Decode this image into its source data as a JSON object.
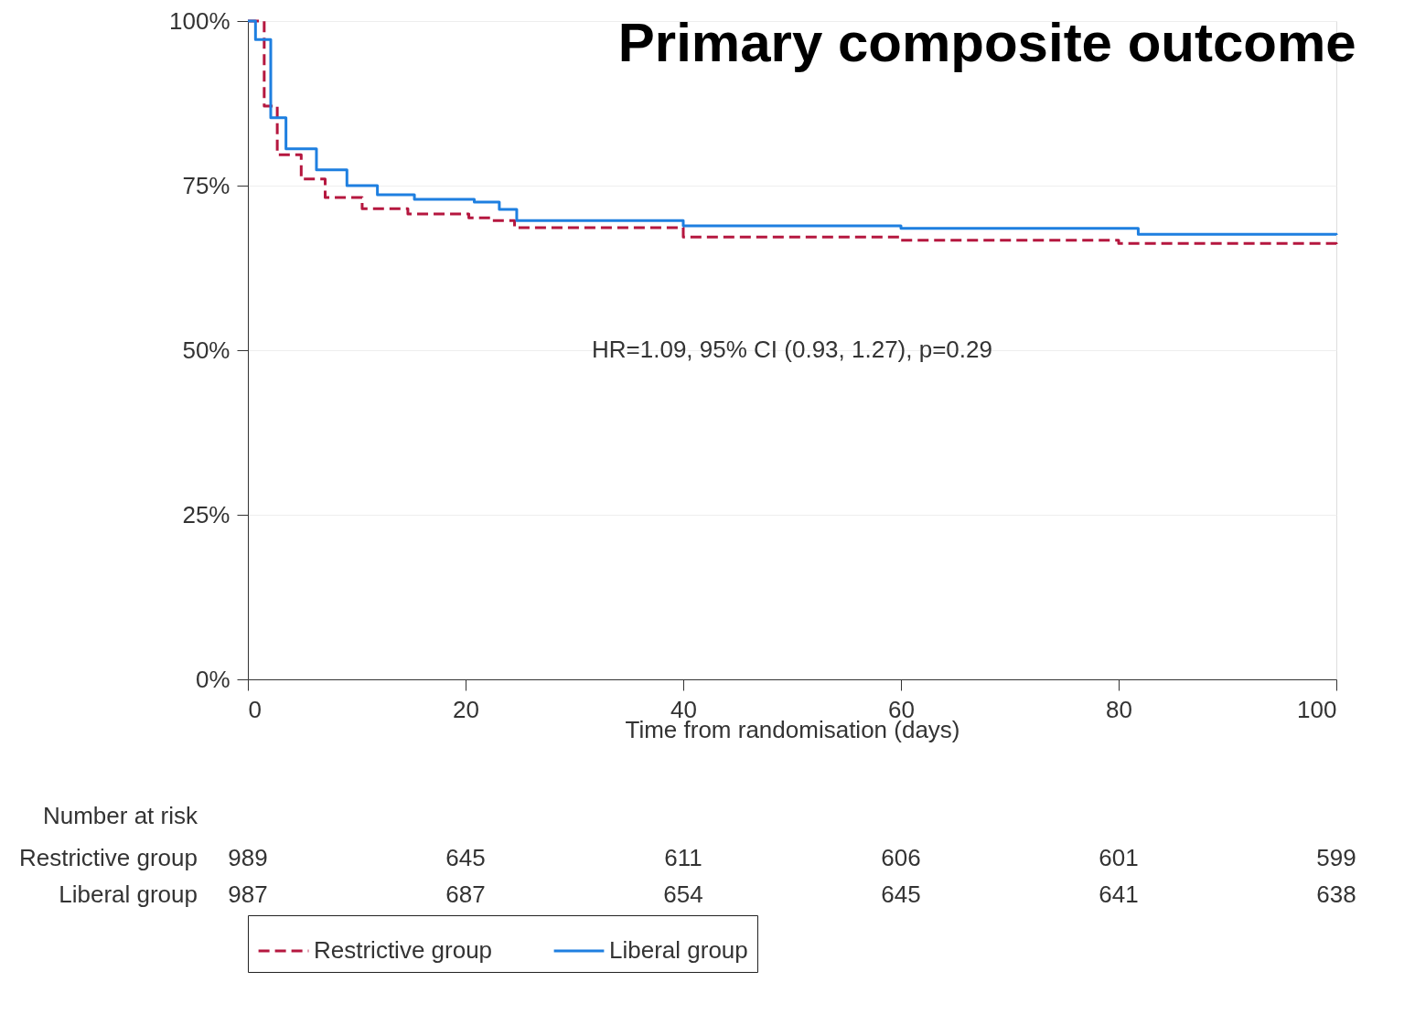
{
  "chart_data": {
    "type": "step",
    "title": "Primary composite outcome",
    "xlabel": "Time from randomisation (days)",
    "series": [
      {
        "name": "Restrictive group",
        "color": "#b5173f",
        "line_style": "dashed",
        "x": [
          0,
          1.5,
          2.7,
          4.9,
          7.1,
          10.5,
          14.7,
          20.3,
          22.5,
          24.5,
          40,
          60,
          80,
          100
        ],
        "values": [
          100,
          87.1,
          79.7,
          76.0,
          73.2,
          71.5,
          70.7,
          70.1,
          69.7,
          68.6,
          67.2,
          66.7,
          66.2,
          66.0
        ]
      },
      {
        "name": "Liberal group",
        "color": "#1e7fe0",
        "line_style": "solid",
        "x": [
          0,
          0.7,
          2.1,
          3.5,
          6.3,
          9.1,
          11.9,
          15.3,
          20.8,
          23.1,
          24.7,
          40,
          60,
          81.8,
          100
        ],
        "values": [
          100,
          97.2,
          85.3,
          80.6,
          77.4,
          75.0,
          73.6,
          72.9,
          72.5,
          71.4,
          69.7,
          68.9,
          68.5,
          67.6,
          67.5
        ]
      }
    ],
    "xlim": [
      0,
      100
    ],
    "xticks": [
      0,
      20,
      40,
      60,
      80,
      100
    ],
    "ylim": [
      0,
      100
    ],
    "yticks": [
      {
        "value": 0,
        "label": "0%"
      },
      {
        "value": 25,
        "label": "25%"
      },
      {
        "value": 50,
        "label": "50%"
      },
      {
        "value": 75,
        "label": "75%"
      },
      {
        "value": 100,
        "label": "100%"
      }
    ],
    "grid": "y",
    "legend": "bottom",
    "annotations": [
      "HR=1.09, 95% CI (0.93, 1.27), p=0.29",
      "Number at risk",
      "Restrictive group",
      "989",
      "645",
      "611",
      "606",
      "601",
      "599",
      "Liberal group",
      "987",
      "687",
      "654",
      "645",
      "641",
      "638"
    ]
  }
}
